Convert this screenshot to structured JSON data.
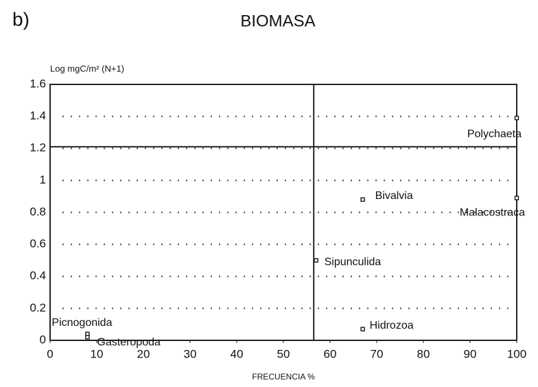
{
  "chart_data": {
    "type": "scatter",
    "panel": "b)",
    "title": "BIOMASA",
    "y_label": "Log mgC/m² (N+1)",
    "x_label": "FRECUENCIA %",
    "categories": [
      "Polychaeta",
      "Bivalvia",
      "Malacostraca",
      "Sipunculida",
      "Hidrozoa",
      "Picnogonida",
      "Gasteropoda"
    ],
    "x": [
      100,
      67,
      100,
      57,
      67,
      8,
      8
    ],
    "values": [
      1.39,
      0.88,
      0.89,
      0.5,
      0.07,
      0.04,
      0.02
    ],
    "xlim": [
      0,
      100
    ],
    "ylim": [
      0,
      1.6
    ],
    "xticks": [
      0,
      10,
      20,
      30,
      40,
      50,
      60,
      70,
      80,
      90,
      100
    ],
    "yticks": [
      0,
      0.2,
      0.4,
      0.6,
      0.8,
      1,
      1.2,
      1.4,
      1.6
    ],
    "vline": 56.5,
    "hline": 1.21,
    "grid": true,
    "color": "#222"
  }
}
